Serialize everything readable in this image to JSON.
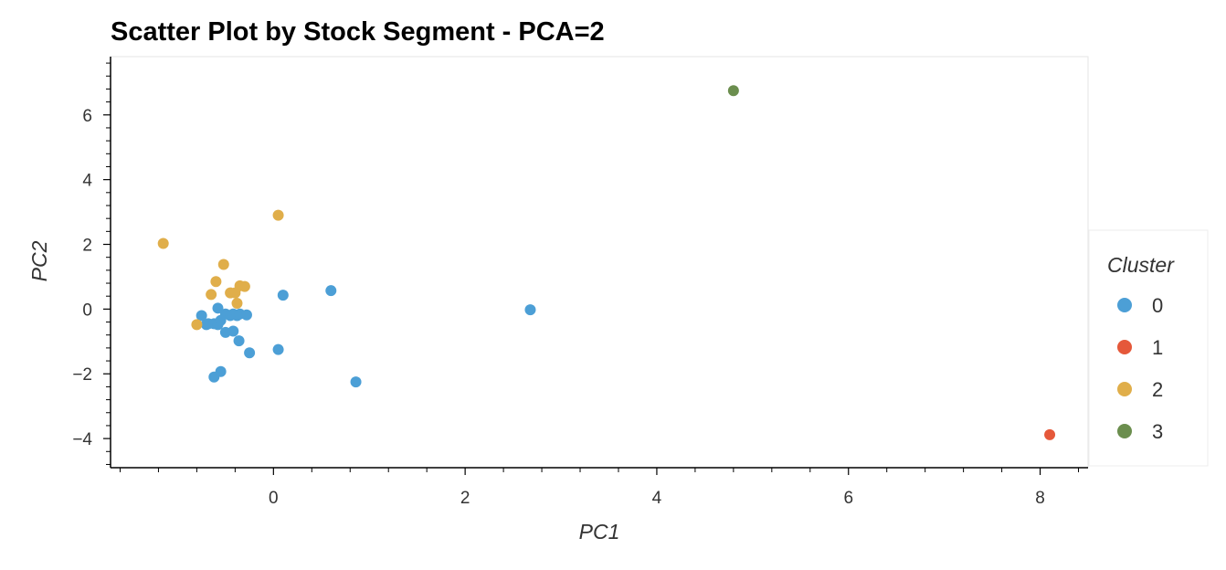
{
  "chart_data": {
    "type": "scatter",
    "title": "Scatter Plot by Stock Segment - PCA=2",
    "xlabel": "PC1",
    "ylabel": "PC2",
    "xlim": [
      -1.7,
      8.5
    ],
    "ylim": [
      -4.9,
      7.8
    ],
    "xticks": [
      0,
      2,
      4,
      6,
      8
    ],
    "yticks": [
      -4,
      -2,
      0,
      2,
      4,
      6
    ],
    "xtick_labels": [
      "0",
      "2",
      "4",
      "6",
      "8"
    ],
    "ytick_labels": [
      "−4",
      "−2",
      "0",
      "2",
      "4",
      "6"
    ],
    "grid": false,
    "legend": {
      "title": "Cluster",
      "placement": "right"
    },
    "series": [
      {
        "name": "0",
        "color": "#4c9fd6",
        "points": [
          [
            -0.75,
            -0.2
          ],
          [
            -0.7,
            -0.48
          ],
          [
            -0.68,
            -0.45
          ],
          [
            -0.62,
            -0.45
          ],
          [
            -0.58,
            -0.48
          ],
          [
            -0.55,
            -0.35
          ],
          [
            -0.58,
            0.03
          ],
          [
            -0.5,
            -0.15
          ],
          [
            -0.45,
            -0.2
          ],
          [
            -0.42,
            -0.15
          ],
          [
            -0.38,
            -0.2
          ],
          [
            -0.35,
            -0.15
          ],
          [
            -0.28,
            -0.18
          ],
          [
            -0.5,
            -0.72
          ],
          [
            -0.42,
            -0.68
          ],
          [
            -0.36,
            -0.98
          ],
          [
            -0.25,
            -1.35
          ],
          [
            0.05,
            -1.25
          ],
          [
            -0.62,
            -2.1
          ],
          [
            -0.55,
            -1.93
          ],
          [
            0.1,
            0.43
          ],
          [
            0.6,
            0.57
          ],
          [
            0.86,
            -2.25
          ],
          [
            2.68,
            -0.02
          ]
        ]
      },
      {
        "name": "1",
        "color": "#e5583a",
        "points": [
          [
            8.1,
            -3.88
          ]
        ]
      },
      {
        "name": "2",
        "color": "#e0ae4a",
        "points": [
          [
            -1.15,
            2.03
          ],
          [
            0.05,
            2.9
          ],
          [
            -0.52,
            1.38
          ],
          [
            -0.6,
            0.85
          ],
          [
            -0.65,
            0.45
          ],
          [
            -0.45,
            0.5
          ],
          [
            -0.4,
            0.5
          ],
          [
            -0.35,
            0.72
          ],
          [
            -0.3,
            0.7
          ],
          [
            -0.38,
            0.18
          ],
          [
            -0.8,
            -0.48
          ]
        ]
      },
      {
        "name": "3",
        "color": "#6b8e4e",
        "points": [
          [
            4.8,
            6.75
          ]
        ]
      }
    ]
  }
}
